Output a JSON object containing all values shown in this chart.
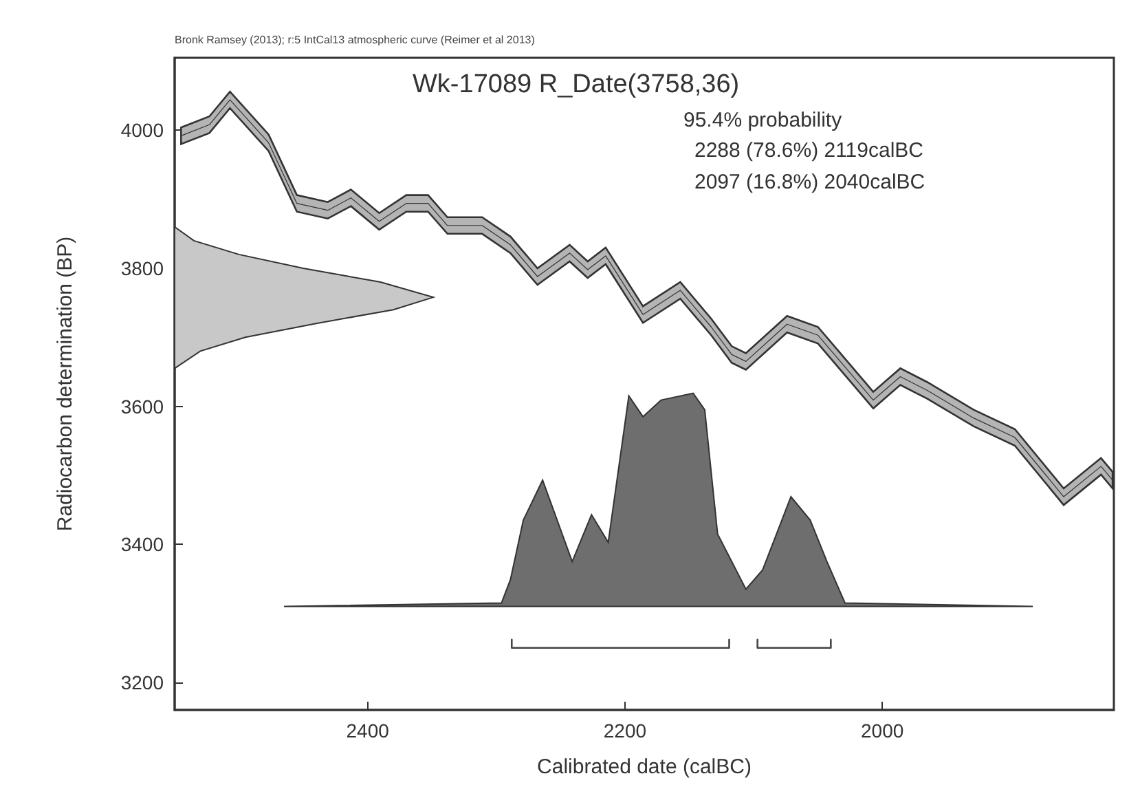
{
  "chart_data": {
    "type": "line",
    "title": "Wk-17089 R_Date(3758,36)",
    "subtitle": "Bronk Ramsey (2013); r:5 IntCal13 atmospheric curve (Reimer et al 2013)",
    "annotations": [
      "95.4% probability",
      "2288 (78.6%) 2119calBC",
      "2097 (16.8%) 2040calBC"
    ],
    "xlabel": "Calibrated date (calBC)",
    "ylabel": "Radiocarbon determination (BP)",
    "xlim": [
      2550,
      1820
    ],
    "xticks": [
      2400,
      2200,
      2000
    ],
    "ylim": [
      3160,
      4105
    ],
    "yticks": [
      3200,
      3400,
      3600,
      3800,
      4000
    ],
    "grid": false,
    "marker": "none",
    "series": [
      {
        "color": "#333333",
        "x": [
          2545,
          2523,
          2507,
          2477,
          2455,
          2431,
          2413,
          2391,
          2370,
          2353,
          2338,
          2311,
          2289,
          2268,
          2243,
          2229,
          2215,
          2186,
          2157,
          2133,
          2117,
          2106,
          2074,
          2050,
          2007,
          1986,
          1965,
          1929,
          1897,
          1859,
          1830,
          1821
        ],
        "values": [
          3992,
          4008,
          4044,
          3982,
          3894,
          3884,
          3902,
          3868,
          3894,
          3894,
          3862,
          3862,
          3834,
          3788,
          3822,
          3798,
          3818,
          3733,
          3768,
          3715,
          3675,
          3665,
          3719,
          3703,
          3609,
          3643,
          3623,
          3583,
          3555,
          3469,
          3513,
          3493
        ],
        "lower": [
          3980,
          3996,
          4032,
          3970,
          3882,
          3872,
          3890,
          3856,
          3882,
          3882,
          3850,
          3850,
          3822,
          3776,
          3810,
          3786,
          3806,
          3721,
          3756,
          3703,
          3663,
          3653,
          3707,
          3691,
          3597,
          3631,
          3611,
          3571,
          3543,
          3457,
          3501,
          3481
        ],
        "upper": [
          4004,
          4020,
          4056,
          3994,
          3906,
          3896,
          3914,
          3880,
          3906,
          3906,
          3874,
          3874,
          3846,
          3800,
          3834,
          3810,
          3830,
          3745,
          3780,
          3727,
          3687,
          3677,
          3731,
          3715,
          3621,
          3655,
          3635,
          3595,
          3567,
          3481,
          3525,
          3505
        ]
      },
      {
        "type": "area",
        "color": "#c8c8c8",
        "x": [
          2550,
          2535,
          2500,
          2450,
          2390,
          2349,
          2380,
          2440,
          2495,
          2530,
          2550
        ],
        "values": [
          3860,
          3840,
          3820,
          3800,
          3780,
          3758,
          3740,
          3720,
          3700,
          3680,
          3655
        ]
      },
      {
        "type": "area",
        "color": "#6e6e6e",
        "x": [
          2465,
          2296,
          2289,
          2279,
          2264,
          2241,
          2226,
          2213,
          2197,
          2186,
          2172,
          2147,
          2138,
          2128,
          2106,
          2093,
          2071,
          2056,
          2043,
          2029,
          1883
        ],
        "values": [
          3310,
          3315,
          3349,
          3435,
          3493,
          3375,
          3443,
          3403,
          3615,
          3585,
          3609,
          3619,
          3595,
          3415,
          3335,
          3363,
          3469,
          3435,
          3375,
          3315,
          3310
        ]
      },
      {
        "color": "#444444",
        "x": [
          2288,
          2288,
          2119,
          2119
        ],
        "values": [
          3262,
          3250,
          3250,
          3262
        ]
      },
      {
        "color": "#444444",
        "x": [
          2097,
          2097,
          2040,
          2040
        ],
        "values": [
          3262,
          3250,
          3250,
          3262
        ]
      }
    ]
  }
}
